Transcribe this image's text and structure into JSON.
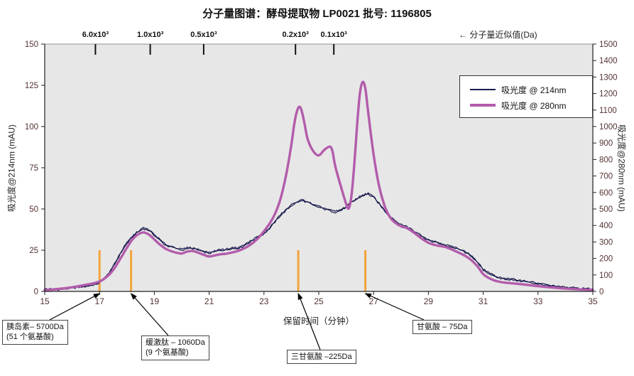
{
  "chart_data": {
    "type": "line",
    "title": "分子量图谱：酵母提取物 LP0021  批号: 1196805",
    "xlabel": "保留时间（分钟）",
    "ylabel_left": "吸光度@214nm (mAU)",
    "ylabel_right": "吸光度@280nm (mAU)",
    "xlim": [
      15,
      35
    ],
    "x_ticks": [
      15,
      17,
      19,
      21,
      23,
      25,
      27,
      29,
      31,
      33,
      35
    ],
    "ylim_left": [
      0,
      150
    ],
    "y_ticks_left": [
      0,
      25,
      50,
      75,
      100,
      125,
      150
    ],
    "ylim_right": [
      0,
      1500
    ],
    "y_ticks_right": [
      0,
      100,
      200,
      300,
      400,
      500,
      600,
      700,
      800,
      900,
      1000,
      1100,
      1200,
      1300,
      1400,
      1500
    ],
    "mw_axis_note": "← 分子量近似值(Da)",
    "mw_markers": [
      {
        "label": "6.0x10³",
        "x": 16.85
      },
      {
        "label": "1.0x10³",
        "x": 18.85
      },
      {
        "label": "0.5x10³",
        "x": 20.8
      },
      {
        "label": "0.2x10³",
        "x": 24.15
      },
      {
        "label": "0.1x10³",
        "x": 25.55
      }
    ],
    "marker_lines": {
      "color": "#f2a43c",
      "x_values": [
        17.0,
        18.15,
        24.25,
        26.7
      ],
      "y_extent_left": [
        0,
        25
      ]
    },
    "series": [
      {
        "name": "吸光度 @ 214nm",
        "axis": "left",
        "color": "#1b1b4f",
        "points": [
          [
            15,
            1
          ],
          [
            15.5,
            1
          ],
          [
            16,
            2
          ],
          [
            16.5,
            3
          ],
          [
            16.8,
            4
          ],
          [
            17,
            5
          ],
          [
            17.2,
            8
          ],
          [
            17.4,
            12
          ],
          [
            17.6,
            18
          ],
          [
            17.8,
            24
          ],
          [
            18,
            29
          ],
          [
            18.2,
            33
          ],
          [
            18.4,
            36
          ],
          [
            18.6,
            38
          ],
          [
            18.8,
            37
          ],
          [
            19,
            34
          ],
          [
            19.2,
            31
          ],
          [
            19.4,
            28
          ],
          [
            19.6,
            27
          ],
          [
            19.8,
            26
          ],
          [
            20,
            25
          ],
          [
            20.2,
            26
          ],
          [
            20.4,
            26
          ],
          [
            20.6,
            25
          ],
          [
            20.8,
            24
          ],
          [
            21,
            23
          ],
          [
            21.2,
            24
          ],
          [
            21.4,
            25
          ],
          [
            21.6,
            25
          ],
          [
            21.8,
            26
          ],
          [
            22,
            26
          ],
          [
            22.2,
            27
          ],
          [
            22.4,
            29
          ],
          [
            22.6,
            31
          ],
          [
            22.8,
            33
          ],
          [
            23,
            35
          ],
          [
            23.2,
            38
          ],
          [
            23.4,
            42
          ],
          [
            23.6,
            46
          ],
          [
            23.8,
            49
          ],
          [
            24,
            52
          ],
          [
            24.2,
            54
          ],
          [
            24.4,
            55
          ],
          [
            24.6,
            54
          ],
          [
            24.8,
            52
          ],
          [
            25,
            51
          ],
          [
            25.2,
            50
          ],
          [
            25.4,
            49
          ],
          [
            25.6,
            48
          ],
          [
            25.8,
            49
          ],
          [
            26,
            51
          ],
          [
            26.2,
            54
          ],
          [
            26.4,
            56
          ],
          [
            26.6,
            58
          ],
          [
            26.8,
            59
          ],
          [
            27,
            57
          ],
          [
            27.2,
            53
          ],
          [
            27.4,
            49
          ],
          [
            27.6,
            45
          ],
          [
            27.8,
            42
          ],
          [
            28,
            40
          ],
          [
            28.2,
            39
          ],
          [
            28.4,
            37
          ],
          [
            28.6,
            35
          ],
          [
            28.8,
            33
          ],
          [
            29,
            31
          ],
          [
            29.2,
            30
          ],
          [
            29.4,
            29
          ],
          [
            29.6,
            28
          ],
          [
            29.8,
            27
          ],
          [
            30,
            26
          ],
          [
            30.2,
            25
          ],
          [
            30.4,
            23
          ],
          [
            30.6,
            21
          ],
          [
            30.8,
            17
          ],
          [
            31,
            13
          ],
          [
            31.2,
            11
          ],
          [
            31.4,
            9
          ],
          [
            31.6,
            8
          ],
          [
            31.8,
            7.5
          ],
          [
            32,
            7
          ],
          [
            32.5,
            6
          ],
          [
            33,
            4.5
          ],
          [
            33.5,
            3
          ],
          [
            34,
            2
          ],
          [
            34.5,
            1.5
          ],
          [
            35,
            1
          ]
        ]
      },
      {
        "name": "吸光度 @ 280nm",
        "axis": "right",
        "color": "#b35cab",
        "points": [
          [
            15,
            8
          ],
          [
            15.5,
            15
          ],
          [
            16,
            25
          ],
          [
            16.5,
            40
          ],
          [
            16.8,
            50
          ],
          [
            17,
            60
          ],
          [
            17.2,
            80
          ],
          [
            17.4,
            110
          ],
          [
            17.6,
            155
          ],
          [
            17.8,
            210
          ],
          [
            18,
            265
          ],
          [
            18.2,
            315
          ],
          [
            18.4,
            345
          ],
          [
            18.6,
            358
          ],
          [
            18.8,
            345
          ],
          [
            19,
            315
          ],
          [
            19.2,
            285
          ],
          [
            19.4,
            260
          ],
          [
            19.6,
            245
          ],
          [
            19.8,
            235
          ],
          [
            20,
            230
          ],
          [
            20.2,
            242
          ],
          [
            20.4,
            245
          ],
          [
            20.6,
            235
          ],
          [
            20.8,
            222
          ],
          [
            21,
            212
          ],
          [
            21.2,
            218
          ],
          [
            21.4,
            225
          ],
          [
            21.6,
            228
          ],
          [
            21.8,
            235
          ],
          [
            22,
            243
          ],
          [
            22.2,
            255
          ],
          [
            22.4,
            272
          ],
          [
            22.6,
            295
          ],
          [
            22.8,
            325
          ],
          [
            23,
            365
          ],
          [
            23.2,
            410
          ],
          [
            23.4,
            470
          ],
          [
            23.6,
            560
          ],
          [
            23.8,
            700
          ],
          [
            24,
            890
          ],
          [
            24.1,
            1010
          ],
          [
            24.2,
            1090
          ],
          [
            24.3,
            1120
          ],
          [
            24.4,
            1080
          ],
          [
            24.5,
            1000
          ],
          [
            24.6,
            920
          ],
          [
            24.8,
            850
          ],
          [
            25,
            825
          ],
          [
            25.2,
            858
          ],
          [
            25.4,
            878
          ],
          [
            25.5,
            850
          ],
          [
            25.6,
            760
          ],
          [
            25.8,
            640
          ],
          [
            26,
            530
          ],
          [
            26.1,
            505
          ],
          [
            26.2,
            590
          ],
          [
            26.3,
            780
          ],
          [
            26.4,
            1010
          ],
          [
            26.5,
            1200
          ],
          [
            26.6,
            1270
          ],
          [
            26.7,
            1230
          ],
          [
            26.8,
            1090
          ],
          [
            27,
            830
          ],
          [
            27.2,
            640
          ],
          [
            27.4,
            520
          ],
          [
            27.6,
            450
          ],
          [
            27.8,
            415
          ],
          [
            28,
            395
          ],
          [
            28.2,
            385
          ],
          [
            28.4,
            365
          ],
          [
            28.6,
            340
          ],
          [
            28.8,
            315
          ],
          [
            29,
            295
          ],
          [
            29.2,
            283
          ],
          [
            29.4,
            276
          ],
          [
            29.6,
            270
          ],
          [
            29.8,
            258
          ],
          [
            30,
            243
          ],
          [
            30.2,
            228
          ],
          [
            30.4,
            210
          ],
          [
            30.6,
            185
          ],
          [
            30.8,
            150
          ],
          [
            31,
            105
          ],
          [
            31.2,
            82
          ],
          [
            31.4,
            67
          ],
          [
            31.6,
            58
          ],
          [
            31.8,
            53
          ],
          [
            32,
            50
          ],
          [
            32.5,
            42
          ],
          [
            33,
            32
          ],
          [
            33.5,
            24
          ],
          [
            34,
            17
          ],
          [
            34.5,
            12
          ],
          [
            35,
            9
          ]
        ]
      }
    ],
    "annotations": [
      {
        "id": "insulin",
        "lines": [
          "胰岛素– 5700Da",
          "(51 个氨基酸)"
        ],
        "target_x": 17.0
      },
      {
        "id": "bradykinin",
        "lines": [
          "缓激肽 – 1060Da",
          "(9 个氨基酸)"
        ],
        "target_x": 18.15
      },
      {
        "id": "triglycine",
        "lines": [
          "三甘氨酸 –225Da"
        ],
        "target_x": 24.25
      },
      {
        "id": "glycine",
        "lines": [
          "甘氨酸 – 75Da"
        ],
        "target_x": 26.7
      }
    ]
  }
}
